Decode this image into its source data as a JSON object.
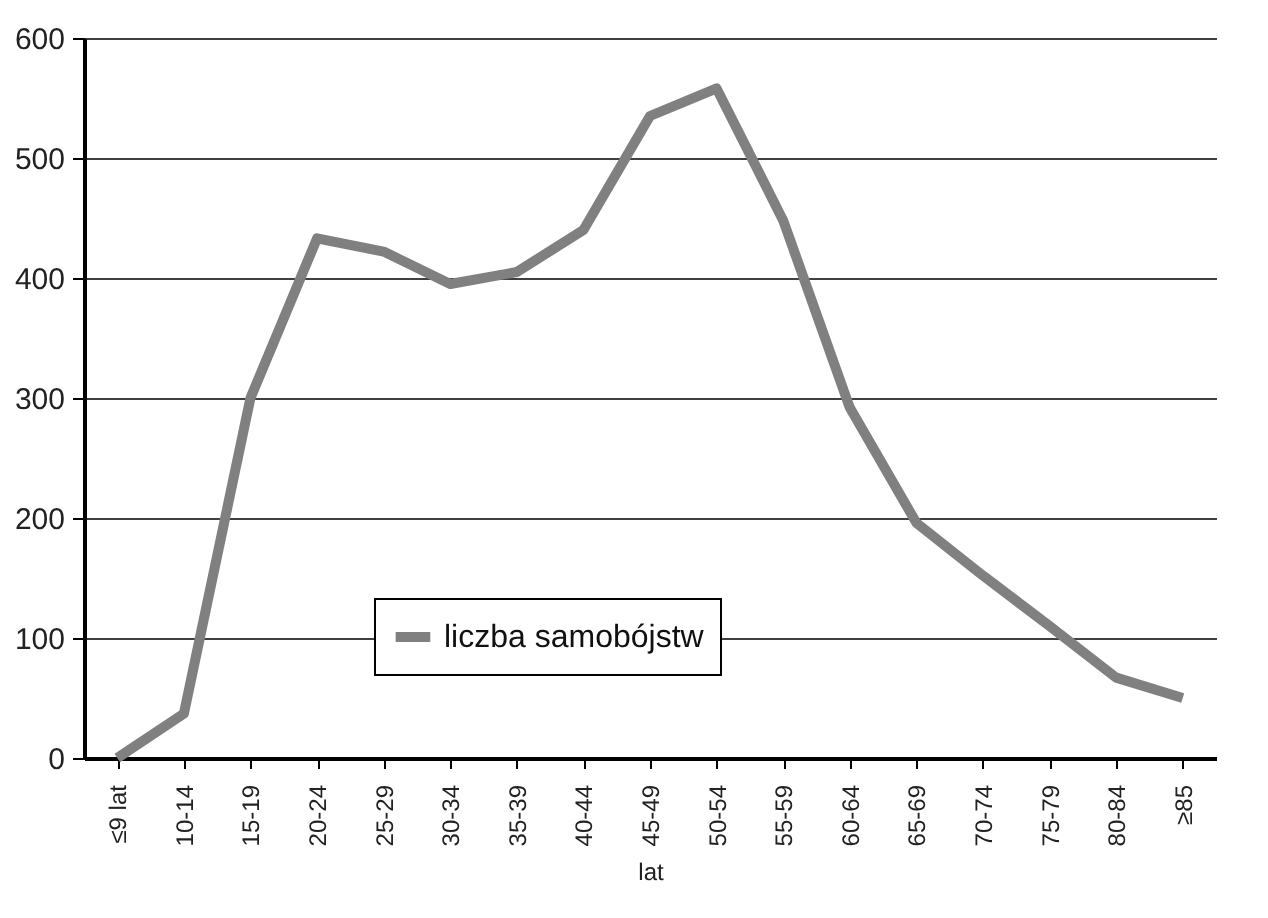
{
  "chart_data": {
    "type": "line",
    "xlabel": "lat",
    "categories": [
      "≤9 lat",
      "10-14",
      "15-19",
      "20-24",
      "25-29",
      "30-34",
      "35-39",
      "40-44",
      "45-49",
      "50-54",
      "55-59",
      "60-64",
      "65-69",
      "70-74",
      "75-79",
      "80-84",
      "≥85"
    ],
    "series": [
      {
        "name": "liczba samobójstw",
        "color": "#808080",
        "values": [
          0,
          37,
          300,
          433,
          422,
          395,
          405,
          440,
          535,
          558,
          448,
          292,
          196,
          152,
          110,
          67,
          50
        ]
      }
    ],
    "ylim": [
      0,
      600
    ],
    "yticks": [
      0,
      100,
      200,
      300,
      400,
      500,
      600
    ],
    "grid": "y",
    "legend": "bottom",
    "marker": "none",
    "line_style": "solid"
  }
}
